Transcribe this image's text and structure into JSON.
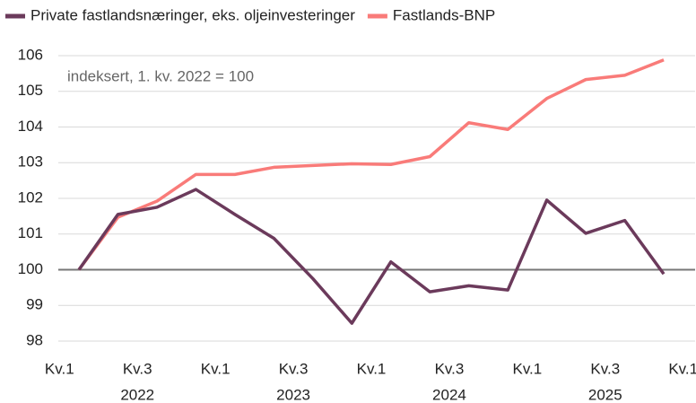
{
  "chart_data": {
    "type": "line",
    "annotation": "indeksert, 1. kv. 2022 = 100",
    "x_tick_labels": [
      "Kv.1",
      "Kv.3",
      "Kv.1",
      "Kv.3",
      "Kv.1",
      "Kv.3",
      "Kv.1",
      "Kv.3",
      "Kv.1"
    ],
    "year_labels": [
      "2022",
      "2023",
      "2024",
      "2025"
    ],
    "series": [
      {
        "name": "Private fastlandsnæringer, eks. oljeinvesteringer",
        "color": "#6b3a5b",
        "values": [
          100,
          101.55,
          101.75,
          102.25,
          101.55,
          100.88,
          99.75,
          98.5,
          100.22,
          99.38,
          99.55,
          99.43,
          101.95,
          101.02,
          101.38,
          99.88
        ]
      },
      {
        "name": "Fastlands-BNP",
        "color": "#f97b79",
        "values": [
          100,
          101.47,
          101.92,
          102.67,
          102.67,
          102.87,
          102.92,
          102.97,
          102.95,
          103.17,
          104.12,
          103.93,
          104.8,
          105.33,
          105.45,
          105.88
        ]
      }
    ],
    "ylim": [
      98,
      106
    ],
    "yticks": [
      98,
      99,
      100,
      101,
      102,
      103,
      104,
      105,
      106
    ],
    "baseline": 100,
    "grid": true
  }
}
